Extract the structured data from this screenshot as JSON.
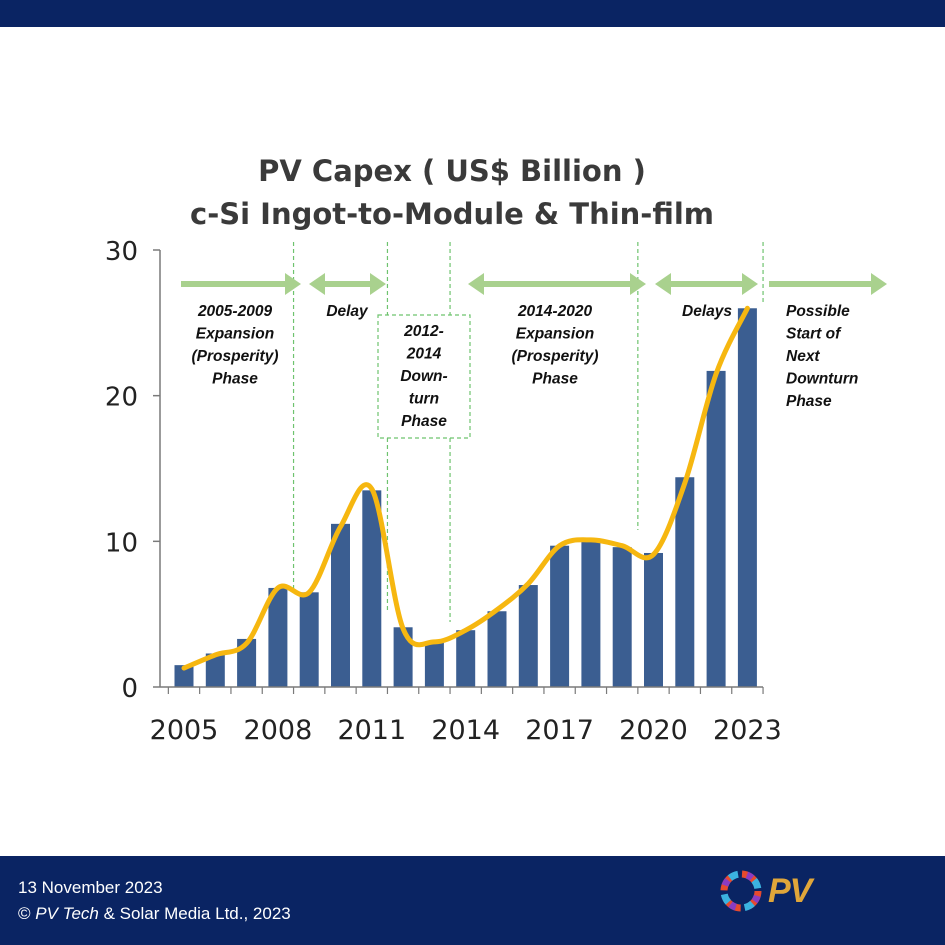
{
  "colors": {
    "banner": "#0a2463",
    "bar": "#3b5e91",
    "trend": "#f6b710",
    "arrow": "#a9d18e",
    "divider": "#6ec36e"
  },
  "footer": {
    "date": "13 November  2023",
    "copyright_prefix": "© ",
    "copyright_brand": "PV Tech",
    "copyright_suffix": " & Solar Media Ltd., 2023",
    "logo_icon": "pv-tech-logo-icon",
    "logo_text": "PV"
  },
  "chart_data": {
    "type": "bar",
    "title": [
      "PV Capex ( US$ Billion )",
      "c-Si Ingot-to-Module & Thin-film"
    ],
    "categories": [
      "2005",
      "2006",
      "2007",
      "2008",
      "2009",
      "2010",
      "2011",
      "2012",
      "2013",
      "2014",
      "2015",
      "2016",
      "2017",
      "2018",
      "2019",
      "2020",
      "2021",
      "2022",
      "2023"
    ],
    "values": [
      1.5,
      2.3,
      3.3,
      6.8,
      6.5,
      11.2,
      13.5,
      4.1,
      3.1,
      3.9,
      5.2,
      7.0,
      9.7,
      10.1,
      9.6,
      9.2,
      14.4,
      21.7,
      26.0
    ],
    "trend_values": [
      1.3,
      2.2,
      3.0,
      6.8,
      6.5,
      11.0,
      13.6,
      4.0,
      3.1,
      3.9,
      5.3,
      7.1,
      9.7,
      10.1,
      9.7,
      9.1,
      14.0,
      21.5,
      26.0
    ],
    "ylim": [
      0,
      30
    ],
    "yticks": [
      "0",
      "10",
      "20",
      "30"
    ],
    "xtick_labels": [
      "2005",
      "2008",
      "2011",
      "2014",
      "2017",
      "2020",
      "2023"
    ],
    "grid": false,
    "phases": [
      {
        "lines": [
          "2005-2009",
          "Expansion",
          "(Prosperity)",
          "Phase"
        ]
      },
      {
        "lines": [
          "Delay"
        ]
      },
      {
        "lines": [
          "2012-",
          "2014",
          "Down-",
          "turn",
          "Phase"
        ]
      },
      {
        "lines": [
          "2014-2020",
          "Expansion",
          "(Prosperity)",
          "Phase"
        ]
      },
      {
        "lines": [
          "Delays"
        ]
      },
      {
        "lines": [
          "Possible",
          "Start of",
          "Next",
          "Downturn",
          "Phase"
        ]
      }
    ]
  }
}
